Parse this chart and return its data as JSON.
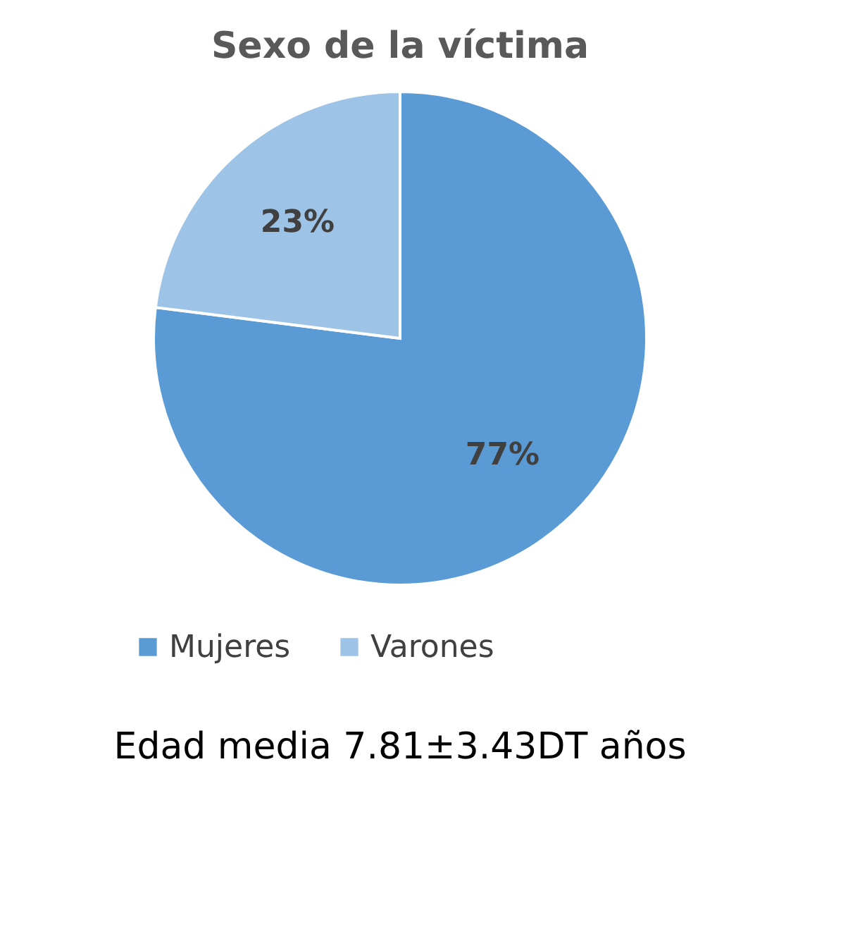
{
  "chart_data": {
    "type": "pie",
    "title": "Sexo de la víctima",
    "categories": [
      "Mujeres",
      "Varones"
    ],
    "values": [
      77,
      23
    ],
    "colors": [
      "#5b9bd5",
      "#9dc3e6"
    ],
    "value_labels": [
      "77%",
      "23%"
    ],
    "legend": "bottom",
    "annotations": [
      "Edad media 7.81±3.43DT años"
    ]
  }
}
